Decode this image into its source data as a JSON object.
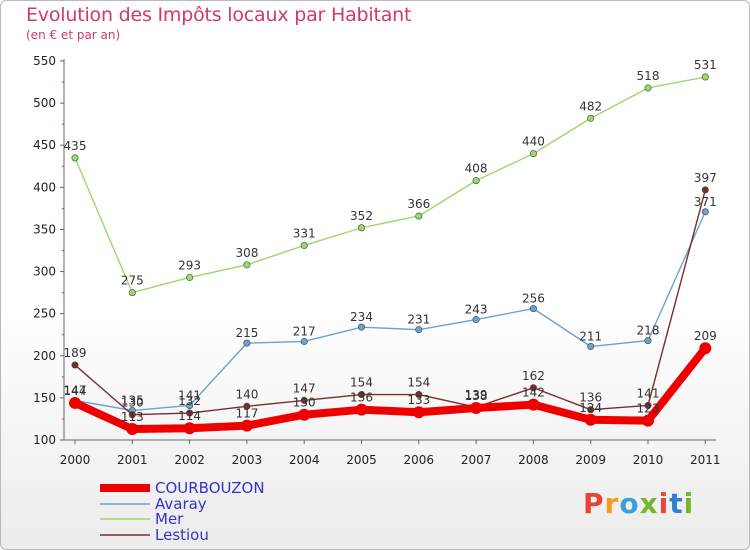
{
  "title": "Evolution des Impôts locaux par Habitant",
  "subtitle": "(en € et par an)",
  "logo": {
    "text": "Proxiti",
    "colors": [
      "#e8443a",
      "#f39c1f",
      "#3aa0d8",
      "#74b72e",
      "#e8443a",
      "#2f7fd0",
      "#74b72e"
    ]
  },
  "chart_data": {
    "type": "line",
    "x": [
      "2000",
      "2001",
      "2002",
      "2003",
      "2004",
      "2005",
      "2006",
      "2007",
      "2008",
      "2009",
      "2010",
      "2011"
    ],
    "ylim": [
      100,
      550
    ],
    "yticks": [
      100,
      150,
      200,
      250,
      300,
      350,
      400,
      450,
      500,
      550
    ],
    "grid": false,
    "legend_position": "bottom-left",
    "series": [
      {
        "name": "COURBOUZON",
        "color": "#ee0000",
        "label_color": "#3333cc",
        "values": [
          144,
          113,
          114,
          117,
          130,
          136,
          133,
          138,
          142,
          124,
          123,
          209
        ],
        "labels": [
          "144",
          "113",
          "114",
          "117",
          "130",
          "136",
          "133",
          "138",
          "142",
          "124",
          "123",
          "209"
        ]
      },
      {
        "name": "Avaray",
        "color": "#6aa2d2",
        "label_color": "#3333cc",
        "values": [
          147,
          135,
          141,
          215,
          217,
          234,
          231,
          243,
          256,
          211,
          218,
          371
        ],
        "labels": [
          "147",
          "135",
          "141",
          "215",
          "217",
          "234",
          "231",
          "243",
          "256",
          "211",
          "218",
          "371"
        ]
      },
      {
        "name": "Mer",
        "color": "#9ad96a",
        "label_color": "#3333cc",
        "values": [
          435,
          275,
          293,
          308,
          331,
          352,
          366,
          408,
          440,
          482,
          518,
          531
        ],
        "labels": [
          "435",
          "275",
          "293",
          "308",
          "331",
          "352",
          "366",
          "408",
          "440",
          "482",
          "518",
          "531"
        ]
      },
      {
        "name": "Lestiou",
        "color": "#7b2c2c",
        "label_color": "#3333cc",
        "values": [
          189,
          130,
          132,
          140,
          147,
          154,
          154,
          139,
          162,
          136,
          141,
          397
        ],
        "labels": [
          "189",
          "130",
          "132",
          "140",
          "147",
          "154",
          "154",
          "139",
          "162",
          "136",
          "141",
          "397"
        ]
      }
    ]
  }
}
